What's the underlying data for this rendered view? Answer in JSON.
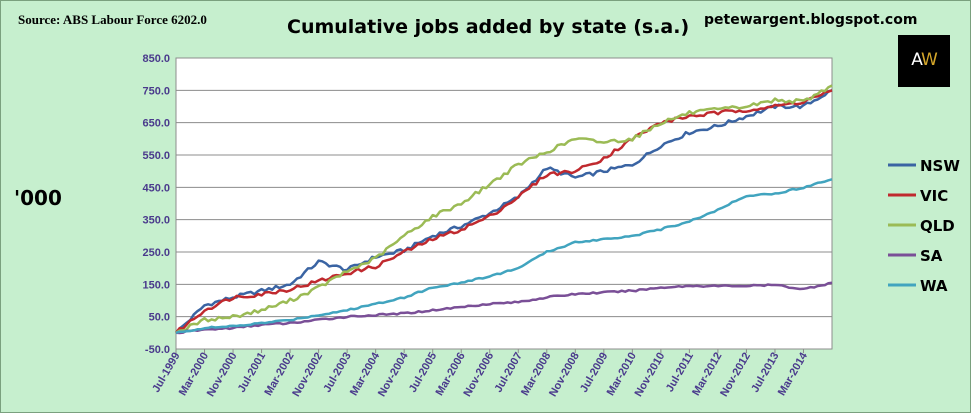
{
  "header": {
    "source": "Source: ABS Labour Force 6202.0",
    "title": "Cumulative jobs added by state (s.a.)",
    "blog": "petewargent.blogspot.com",
    "unit_label": "'000"
  },
  "logo": {
    "letter_a": "A",
    "letter_w": "W"
  },
  "chart_data": {
    "type": "line",
    "title": "Cumulative jobs added by state (s.a.)",
    "ylabel": "'000",
    "ylim": [
      -50,
      850
    ],
    "yticks": [
      "-50.0",
      "50.0",
      "150.0",
      "250.0",
      "350.0",
      "450.0",
      "550.0",
      "650.0",
      "750.0",
      "850.0"
    ],
    "xticks": [
      "Jul-1999",
      "Mar-2000",
      "Nov-2000",
      "Jul-2001",
      "Mar-2002",
      "Nov-2002",
      "Jul-2003",
      "Mar-2004",
      "Nov-2004",
      "Jul-2005",
      "Mar-2006",
      "Nov-2006",
      "Jul-2007",
      "Mar-2008",
      "Nov-2008",
      "Jul-2009",
      "Mar-2010",
      "Nov-2010",
      "Jul-2011",
      "Mar-2012",
      "Nov-2012",
      "Jul-2013",
      "Mar-2014"
    ],
    "x": [
      "Jul-1999",
      "Mar-2000",
      "Nov-2000",
      "Jul-2001",
      "Mar-2002",
      "Nov-2002",
      "Jul-2003",
      "Mar-2004",
      "Nov-2004",
      "Jul-2005",
      "Mar-2006",
      "Nov-2006",
      "Jul-2007",
      "Mar-2008",
      "Nov-2008",
      "Jul-2009",
      "Mar-2010",
      "Nov-2010",
      "Jul-2011",
      "Mar-2012",
      "Nov-2012",
      "Jul-2013",
      "Mar-2014",
      "Nov-2014"
    ],
    "grid": true,
    "legend_position": "right",
    "series": [
      {
        "name": "NSW",
        "color": "#3a64a3",
        "values": [
          0,
          85,
          110,
          130,
          150,
          220,
          195,
          235,
          255,
          300,
          330,
          370,
          420,
          510,
          480,
          500,
          520,
          580,
          620,
          640,
          670,
          700,
          700,
          750
        ]
      },
      {
        "name": "VIC",
        "color": "#c0292e",
        "values": [
          0,
          70,
          110,
          120,
          135,
          160,
          185,
          205,
          250,
          290,
          320,
          360,
          420,
          490,
          500,
          540,
          600,
          650,
          670,
          680,
          690,
          700,
          715,
          750
        ]
      },
      {
        "name": "QLD",
        "color": "#9bbb55",
        "values": [
          0,
          40,
          50,
          70,
          100,
          140,
          190,
          230,
          300,
          360,
          400,
          460,
          520,
          560,
          600,
          590,
          600,
          650,
          680,
          690,
          700,
          720,
          715,
          765
        ]
      },
      {
        "name": "SA",
        "color": "#7a4f97",
        "values": [
          0,
          10,
          15,
          25,
          30,
          40,
          50,
          55,
          60,
          70,
          80,
          90,
          95,
          110,
          120,
          125,
          130,
          140,
          145,
          145,
          145,
          148,
          135,
          155
        ]
      },
      {
        "name": "WA",
        "color": "#41a4bf",
        "values": [
          0,
          15,
          20,
          30,
          40,
          55,
          70,
          90,
          110,
          140,
          155,
          175,
          200,
          250,
          280,
          290,
          300,
          320,
          345,
          380,
          425,
          430,
          450,
          475
        ]
      }
    ]
  }
}
